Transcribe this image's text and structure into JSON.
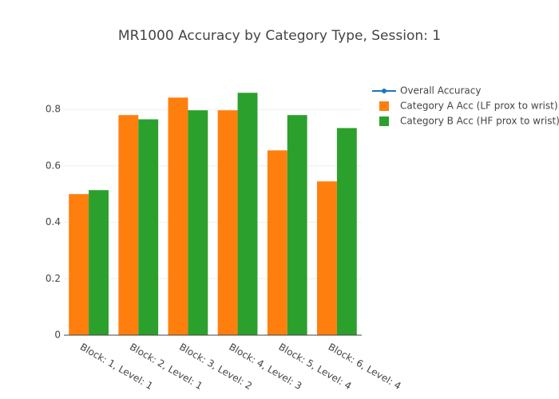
{
  "chart_data": {
    "type": "bar",
    "title": "MR1000 Accuracy by Category Type, Session: 1",
    "categories": [
      "Block: 1, Level: 1",
      "Block: 2, Level: 1",
      "Block: 3, Level: 2",
      "Block: 4, Level: 3",
      "Block: 5, Level: 4",
      "Block: 6, Level: 4"
    ],
    "series": [
      {
        "name": "Overall Accuracy",
        "type": "line",
        "color": "#1f77b4",
        "values": [
          null,
          null,
          null,
          null,
          null,
          null
        ]
      },
      {
        "name": "Category A Acc (LF prox to wrist)",
        "type": "bar",
        "color": "#ff7f0e",
        "values": [
          0.5,
          0.78,
          0.842,
          0.797,
          0.655,
          0.545
        ]
      },
      {
        "name": "Category B Acc (HF prox to wrist)",
        "type": "bar",
        "color": "#2ca02c",
        "values": [
          0.514,
          0.765,
          0.797,
          0.859,
          0.78,
          0.734
        ]
      }
    ],
    "ylim": [
      0,
      0.905
    ],
    "yticks": [
      0,
      0.2,
      0.4,
      0.6,
      0.8
    ],
    "grid": true,
    "legend": "right"
  }
}
